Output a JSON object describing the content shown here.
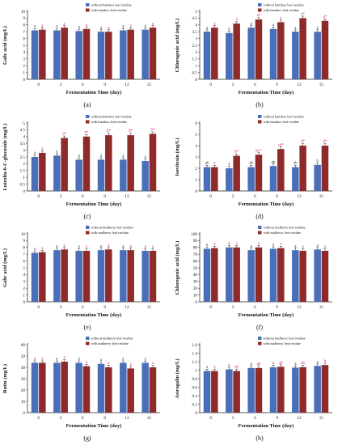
{
  "figure": {
    "colors": {
      "without": "#4a6fb8",
      "with": "#8e2a2a",
      "sig_with": "#d3206a",
      "sig_without": "#333333"
    }
  },
  "chart_data": [
    {
      "type": "bar",
      "panel_label": "(a)",
      "ylabel": "Galic acid (mg/L)",
      "xlabel": "Fermentation Time (day)",
      "categories": [
        "0",
        "3",
        "6",
        "9",
        "12",
        "15"
      ],
      "ylim": [
        0,
        10
      ],
      "yticks": [
        0,
        1,
        2,
        3,
        4,
        5,
        6,
        7,
        8,
        9,
        10
      ],
      "legend": "top-center",
      "series": [
        {
          "name": "without bamboo leaf residue",
          "values": [
            7.2,
            7.2,
            7.1,
            7.0,
            7.2,
            7.3
          ],
          "labels": [
            "a",
            "a",
            "a",
            "a",
            "a",
            "a"
          ]
        },
        {
          "name": "with bamboo leaf residue",
          "values": [
            7.3,
            7.6,
            7.4,
            7.0,
            7.3,
            7.6
          ],
          "labels": [
            "a",
            "a",
            "a",
            "a",
            "a",
            "a"
          ]
        }
      ]
    },
    {
      "type": "bar",
      "panel_label": "(b)",
      "ylabel": "Chlorogenic acid (mg/L)",
      "xlabel": "Fermentation Time (day)",
      "categories": [
        "0",
        "3",
        "6",
        "9",
        "12",
        "15"
      ],
      "ylim": [
        0,
        5
      ],
      "yticks": [
        0,
        0.5,
        1,
        1.5,
        2,
        2.5,
        3,
        3.5,
        4,
        4.5,
        5
      ],
      "legend": "top-center",
      "series": [
        {
          "name": "without bamboo leaf residue",
          "values": [
            3.5,
            3.4,
            3.8,
            3.7,
            3.5,
            3.5
          ],
          "labels": [
            "a",
            "a",
            "a",
            "a",
            "a",
            "a"
          ]
        },
        {
          "name": "with bamboo leaf residue",
          "values": [
            3.8,
            4.1,
            4.4,
            4.2,
            4.5,
            4.3
          ],
          "labels": [
            "a",
            "a",
            "a*",
            "a",
            "a*",
            "a*"
          ]
        }
      ]
    },
    {
      "type": "bar",
      "panel_label": "(c)",
      "ylabel": "Luteolin-6-C-glucoside (mg/L)",
      "xlabel": "Fermentation Time (day)",
      "categories": [
        "0",
        "3",
        "6",
        "9",
        "12",
        "15"
      ],
      "ylim": [
        0,
        5
      ],
      "yticks": [
        0,
        0.5,
        1,
        1.5,
        2,
        2.5,
        3,
        3.5,
        4,
        4.5,
        5
      ],
      "legend": "top-center",
      "series": [
        {
          "name": "without bamboo leaf residue",
          "values": [
            2.5,
            2.6,
            2.3,
            2.3,
            2.3,
            2.2
          ],
          "labels": [
            "a",
            "a",
            "a",
            "a",
            "a",
            "a"
          ]
        },
        {
          "name": "with bamboo leaf residue",
          "values": [
            2.8,
            3.9,
            4.0,
            4.1,
            4.1,
            4.2
          ],
          "labels": [
            "a",
            "b*",
            "b*",
            "b*",
            "b*",
            "b*"
          ]
        }
      ]
    },
    {
      "type": "bar",
      "panel_label": "(d)",
      "ylabel": "Isovitexin (mg/L)",
      "xlabel": "Fermentation Time (day)",
      "categories": [
        "0",
        "3",
        "6",
        "9",
        "12",
        "15"
      ],
      "ylim": [
        0,
        6
      ],
      "yticks": [
        0,
        1,
        2,
        3,
        4,
        5,
        6
      ],
      "legend": "top-center",
      "series": [
        {
          "name": "without bamboo leaf residue",
          "values": [
            2.1,
            2.0,
            2.1,
            2.2,
            2.1,
            2.3
          ],
          "labels": [
            "ab",
            "a",
            "ab",
            "ab",
            "ab",
            "b"
          ]
        },
        {
          "name": "with bamboo leaf residue",
          "values": [
            2.1,
            3.1,
            3.2,
            3.7,
            4.0,
            4.0
          ],
          "labels": [
            "a",
            "b*",
            "bc*",
            "cd*",
            "d*",
            "d*"
          ]
        }
      ]
    },
    {
      "type": "bar",
      "panel_label": "(e)",
      "ylabel": "Galic acid (mg/L)",
      "xlabel": "Fermentation Time (day)",
      "categories": [
        "0",
        "3",
        "6",
        "9",
        "12",
        "15"
      ],
      "ylim": [
        0,
        10
      ],
      "yticks": [
        0,
        1,
        2,
        3,
        4,
        5,
        6,
        7,
        8,
        9,
        10
      ],
      "legend": "top-center",
      "series": [
        {
          "name": "without mulberry leaf residue",
          "values": [
            7.2,
            7.6,
            7.5,
            7.6,
            7.6,
            7.5
          ],
          "labels": [
            "a",
            "a",
            "a",
            "a",
            "a",
            "a"
          ]
        },
        {
          "name": "with mulberry leaf residue",
          "values": [
            7.3,
            7.7,
            7.5,
            7.7,
            7.6,
            7.5
          ],
          "labels": [
            "a",
            "a",
            "a",
            "a",
            "a",
            "a"
          ]
        }
      ]
    },
    {
      "type": "bar",
      "panel_label": "(f)",
      "ylabel": "Chlorogenic acid (mg/L)",
      "xlabel": "Fermentation Time (day)",
      "categories": [
        "0",
        "3",
        "6",
        "9",
        "12",
        "15"
      ],
      "ylim": [
        0,
        100
      ],
      "yticks": [
        0,
        10,
        20,
        30,
        40,
        50,
        60,
        70,
        80,
        90,
        100
      ],
      "legend": "top-center",
      "series": [
        {
          "name": "without mulberry leaf residue",
          "values": [
            78,
            80,
            76,
            78,
            76,
            77
          ],
          "labels": [
            "a",
            "a",
            "a",
            "a",
            "a",
            "a"
          ]
        },
        {
          "name": "with mulberry leaf residue",
          "values": [
            79,
            80,
            80,
            79,
            75,
            75
          ],
          "labels": [
            "a",
            "a",
            "a",
            "a",
            "a",
            "a"
          ]
        }
      ]
    },
    {
      "type": "bar",
      "panel_label": "(g)",
      "ylabel": "Rutin (mg/L)",
      "xlabel": "Fermentation Time (day)",
      "categories": [
        "0",
        "3",
        "6",
        "9",
        "12",
        "15"
      ],
      "ylim": [
        0,
        60
      ],
      "yticks": [
        0,
        10,
        20,
        30,
        40,
        50,
        60
      ],
      "legend": "top-center",
      "series": [
        {
          "name": "without mulberry leaf residue",
          "values": [
            44,
            44,
            44,
            43,
            44,
            44
          ],
          "labels": [
            "a",
            "a",
            "a",
            "a",
            "a",
            "a"
          ]
        },
        {
          "name": "with mulberry leaf residue",
          "values": [
            44,
            45,
            41,
            40,
            39,
            40
          ],
          "labels": [
            "a",
            "a",
            "a",
            "a",
            "a",
            "a"
          ]
        }
      ]
    },
    {
      "type": "bar",
      "panel_label": "(h)",
      "ylabel": "Astragalin (mg/L)",
      "xlabel": "Fermentation Time (day)",
      "categories": [
        "0",
        "3",
        "6",
        "9",
        "12",
        "15"
      ],
      "ylim": [
        0,
        1.6
      ],
      "yticks": [
        0,
        0.2,
        0.4,
        0.6,
        0.8,
        1.0,
        1.2,
        1.4,
        1.6
      ],
      "legend": "top-center",
      "series": [
        {
          "name": "without mulberry leaf residue",
          "values": [
            0.98,
            1.02,
            1.05,
            1.07,
            1.06,
            1.1
          ],
          "labels": [
            "a",
            "a",
            "a",
            "a",
            "a",
            "a"
          ]
        },
        {
          "name": "with mulberry leaf residue",
          "values": [
            0.98,
            0.98,
            1.05,
            1.08,
            1.07,
            1.12
          ],
          "labels": [
            "a",
            "ab",
            "ab",
            "ab",
            "ab",
            "b"
          ]
        }
      ]
    }
  ]
}
